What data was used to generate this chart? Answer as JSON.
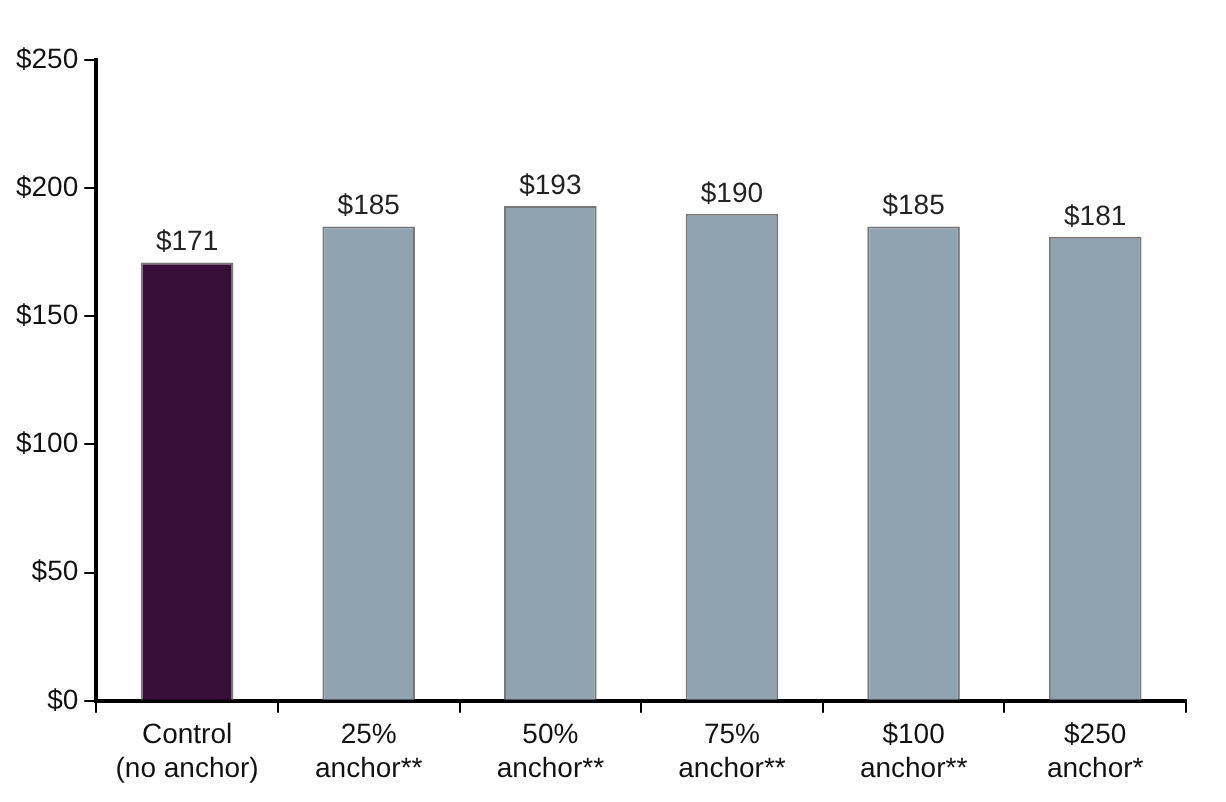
{
  "chart_data": {
    "type": "bar",
    "categories": [
      "Control\n(no anchor)",
      "25%\nanchor**",
      "50%\nanchor**",
      "75%\nanchor**",
      "$100\nanchor**",
      "$250\nanchor*"
    ],
    "values": [
      171,
      185,
      193,
      190,
      185,
      181
    ],
    "colors": [
      "#380f38",
      "#8fa3b0",
      "#8fa3b0",
      "#8fa3b0",
      "#8fa3b0",
      "#8fa3b0"
    ],
    "value_labels": [
      "$171",
      "$185",
      "$193",
      "$190",
      "$185",
      "$181"
    ],
    "ylim": [
      0,
      250
    ],
    "yticks": [
      {
        "value": 0,
        "label": "$0"
      },
      {
        "value": 50,
        "label": "$50"
      },
      {
        "value": 100,
        "label": "$100"
      },
      {
        "value": 150,
        "label": "$150"
      },
      {
        "value": 200,
        "label": "$200"
      },
      {
        "value": 250,
        "label": "$250"
      }
    ],
    "grid": false,
    "legend": false
  }
}
